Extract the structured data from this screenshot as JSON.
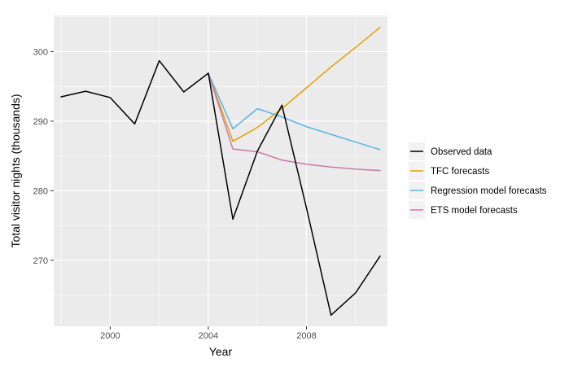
{
  "chart_data": {
    "type": "line",
    "title": "",
    "xlabel": "Year",
    "ylabel": "Total visitor nights (thousands)",
    "xlim": [
      1997.7,
      2011.3
    ],
    "ylim": [
      260.5,
      305.2
    ],
    "x_ticks": [
      2000,
      2004,
      2008
    ],
    "x_tick_labels": [
      "2000",
      "2004",
      "2008"
    ],
    "y_ticks": [
      270,
      280,
      290,
      300
    ],
    "y_tick_labels": [
      "270",
      "280",
      "290",
      "300"
    ],
    "grid": true,
    "legend_position": "right",
    "series": [
      {
        "name": "Observed data",
        "color": "#000000",
        "x": [
          1998,
          1999,
          2000,
          2001,
          2002,
          2003,
          2004,
          2005,
          2006,
          2007,
          2008,
          2009,
          2010,
          2011
        ],
        "y": [
          293.5,
          294.3,
          293.4,
          289.6,
          298.7,
          294.2,
          296.9,
          275.9,
          285.7,
          292.3,
          277.5,
          262.1,
          265.3,
          270.6
        ]
      },
      {
        "name": "TFC forecasts",
        "color": "#E69F00",
        "x": [
          2004,
          2005,
          2006,
          2007,
          2008,
          2009,
          2010,
          2011
        ],
        "y": [
          296.9,
          287.1,
          289.1,
          291.8,
          294.8,
          297.8,
          300.6,
          303.5
        ]
      },
      {
        "name": "Regression model forecasts",
        "color": "#56B4E9",
        "x": [
          2004,
          2005,
          2006,
          2007,
          2008,
          2009,
          2010,
          2011
        ],
        "y": [
          296.9,
          288.9,
          291.8,
          290.6,
          289.2,
          288.1,
          287.0,
          285.9
        ]
      },
      {
        "name": "ETS model forecasts",
        "color": "#CC79A7",
        "x": [
          2004,
          2005,
          2006,
          2007,
          2008,
          2009,
          2010,
          2011
        ],
        "y": [
          296.9,
          286.0,
          285.6,
          284.4,
          283.8,
          283.4,
          283.1,
          282.9
        ]
      }
    ]
  }
}
